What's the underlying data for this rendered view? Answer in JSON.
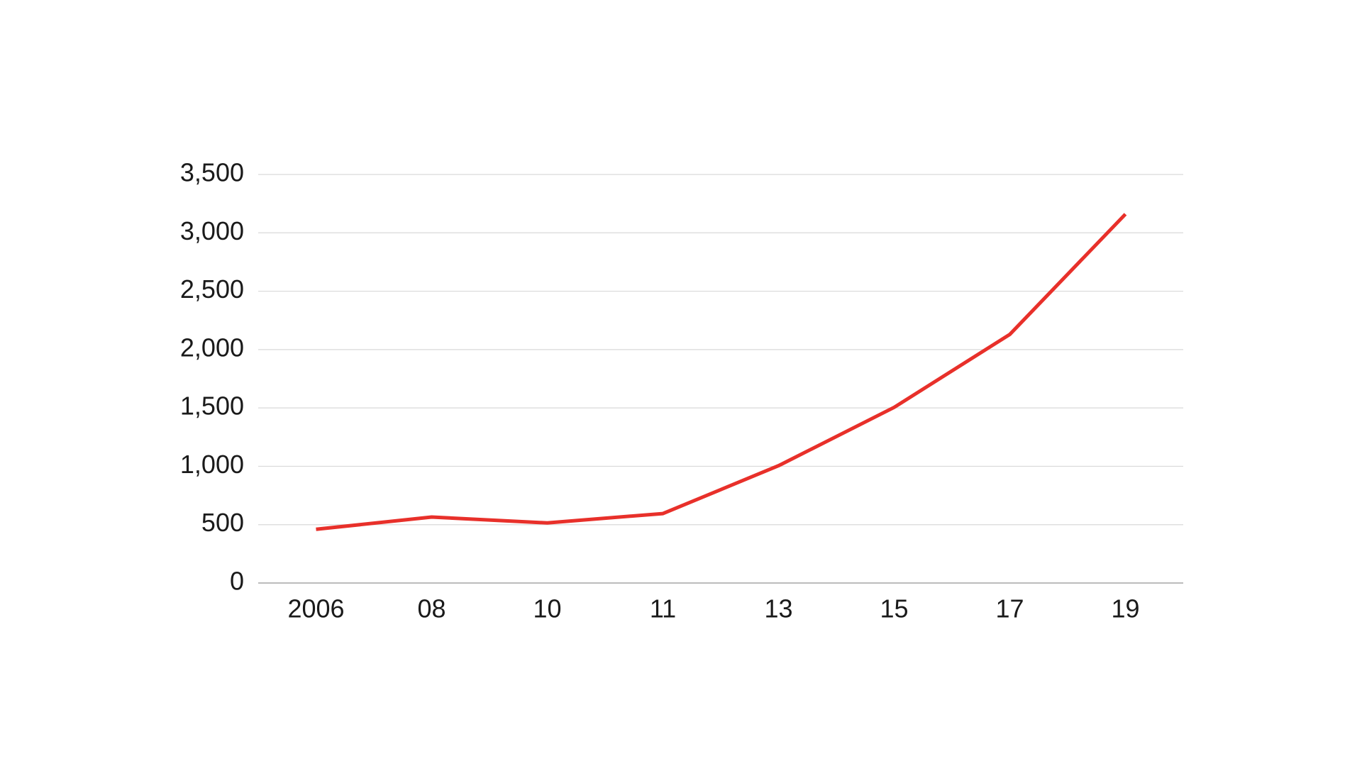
{
  "chart_data": {
    "type": "line",
    "categories": [
      "2006",
      "08",
      "10",
      "11",
      "13",
      "15",
      "17",
      "19"
    ],
    "values": [
      460,
      565,
      515,
      595,
      1005,
      1505,
      2130,
      3160
    ],
    "color": "#e8302a",
    "ylim": [
      0,
      3500
    ],
    "yticks": [
      0,
      500,
      {
        "value": 1000,
        "label": "1,000"
      },
      {
        "value": 1500,
        "label": "1,500"
      },
      {
        "value": 2000,
        "label": "2,000"
      },
      {
        "value": 2500,
        "label": "2,500"
      },
      {
        "value": 3000,
        "label": "3,000"
      },
      {
        "value": 3500,
        "label": "3,500"
      }
    ],
    "grid": true
  }
}
